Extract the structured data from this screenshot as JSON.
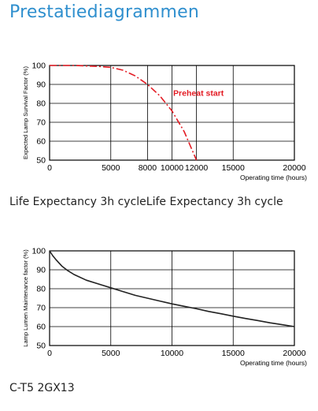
{
  "page": {
    "title": "Prestatiediagrammen",
    "caption1": "Life Expectancy 3h cycleLife Expectancy 3h cycle",
    "caption2": "C-T5 2GX13"
  },
  "chart_data": [
    {
      "type": "line",
      "title": "",
      "xlabel": "Operating time (hours)",
      "ylabel": "Expected Lamp Survival Factor (%)",
      "xlim": [
        0,
        20000
      ],
      "ylim": [
        50,
        100
      ],
      "xticks": [
        0,
        5000,
        8000,
        10000,
        12000,
        15000,
        20000
      ],
      "yticks": [
        50,
        60,
        70,
        80,
        90,
        100
      ],
      "grid": true,
      "annotations": [
        {
          "text": "Preheat start",
          "x": 10100,
          "y": 84,
          "color": "#e31b23"
        }
      ],
      "series": [
        {
          "name": "",
          "style": "dash-dot",
          "color": "#e31b23",
          "x": [
            0,
            2000,
            4000,
            5000,
            6000,
            7000,
            8000,
            9000,
            10000,
            11000,
            12000
          ],
          "y": [
            100,
            100,
            99.5,
            99,
            97.5,
            94.5,
            90,
            84,
            76,
            65,
            50
          ]
        }
      ]
    },
    {
      "type": "line",
      "title": "",
      "xlabel": "Operating time (hours)",
      "ylabel": "Lamp Lumen Maintenance factor (%)",
      "xlim": [
        0,
        20000
      ],
      "ylim": [
        50,
        100
      ],
      "xticks": [
        0,
        5000,
        10000,
        15000,
        20000
      ],
      "yticks": [
        50,
        60,
        70,
        80,
        90,
        100
      ],
      "grid": true,
      "annotations": [],
      "series": [
        {
          "name": "",
          "style": "solid",
          "color": "#222222",
          "x": [
            0,
            250,
            500,
            1000,
            1500,
            2000,
            3000,
            4000,
            5000,
            6000,
            7000,
            8000,
            9000,
            10000,
            11000,
            12000,
            13000,
            14000,
            15000,
            16000,
            17000,
            18000,
            19000,
            20000
          ],
          "y": [
            100,
            97.5,
            95.5,
            92,
            89.5,
            87.5,
            84.5,
            82.5,
            80.5,
            78.5,
            76.5,
            75,
            73.5,
            72,
            70.7,
            69.4,
            68,
            66.8,
            65.5,
            64.3,
            63.2,
            62,
            61,
            60
          ]
        }
      ]
    }
  ]
}
